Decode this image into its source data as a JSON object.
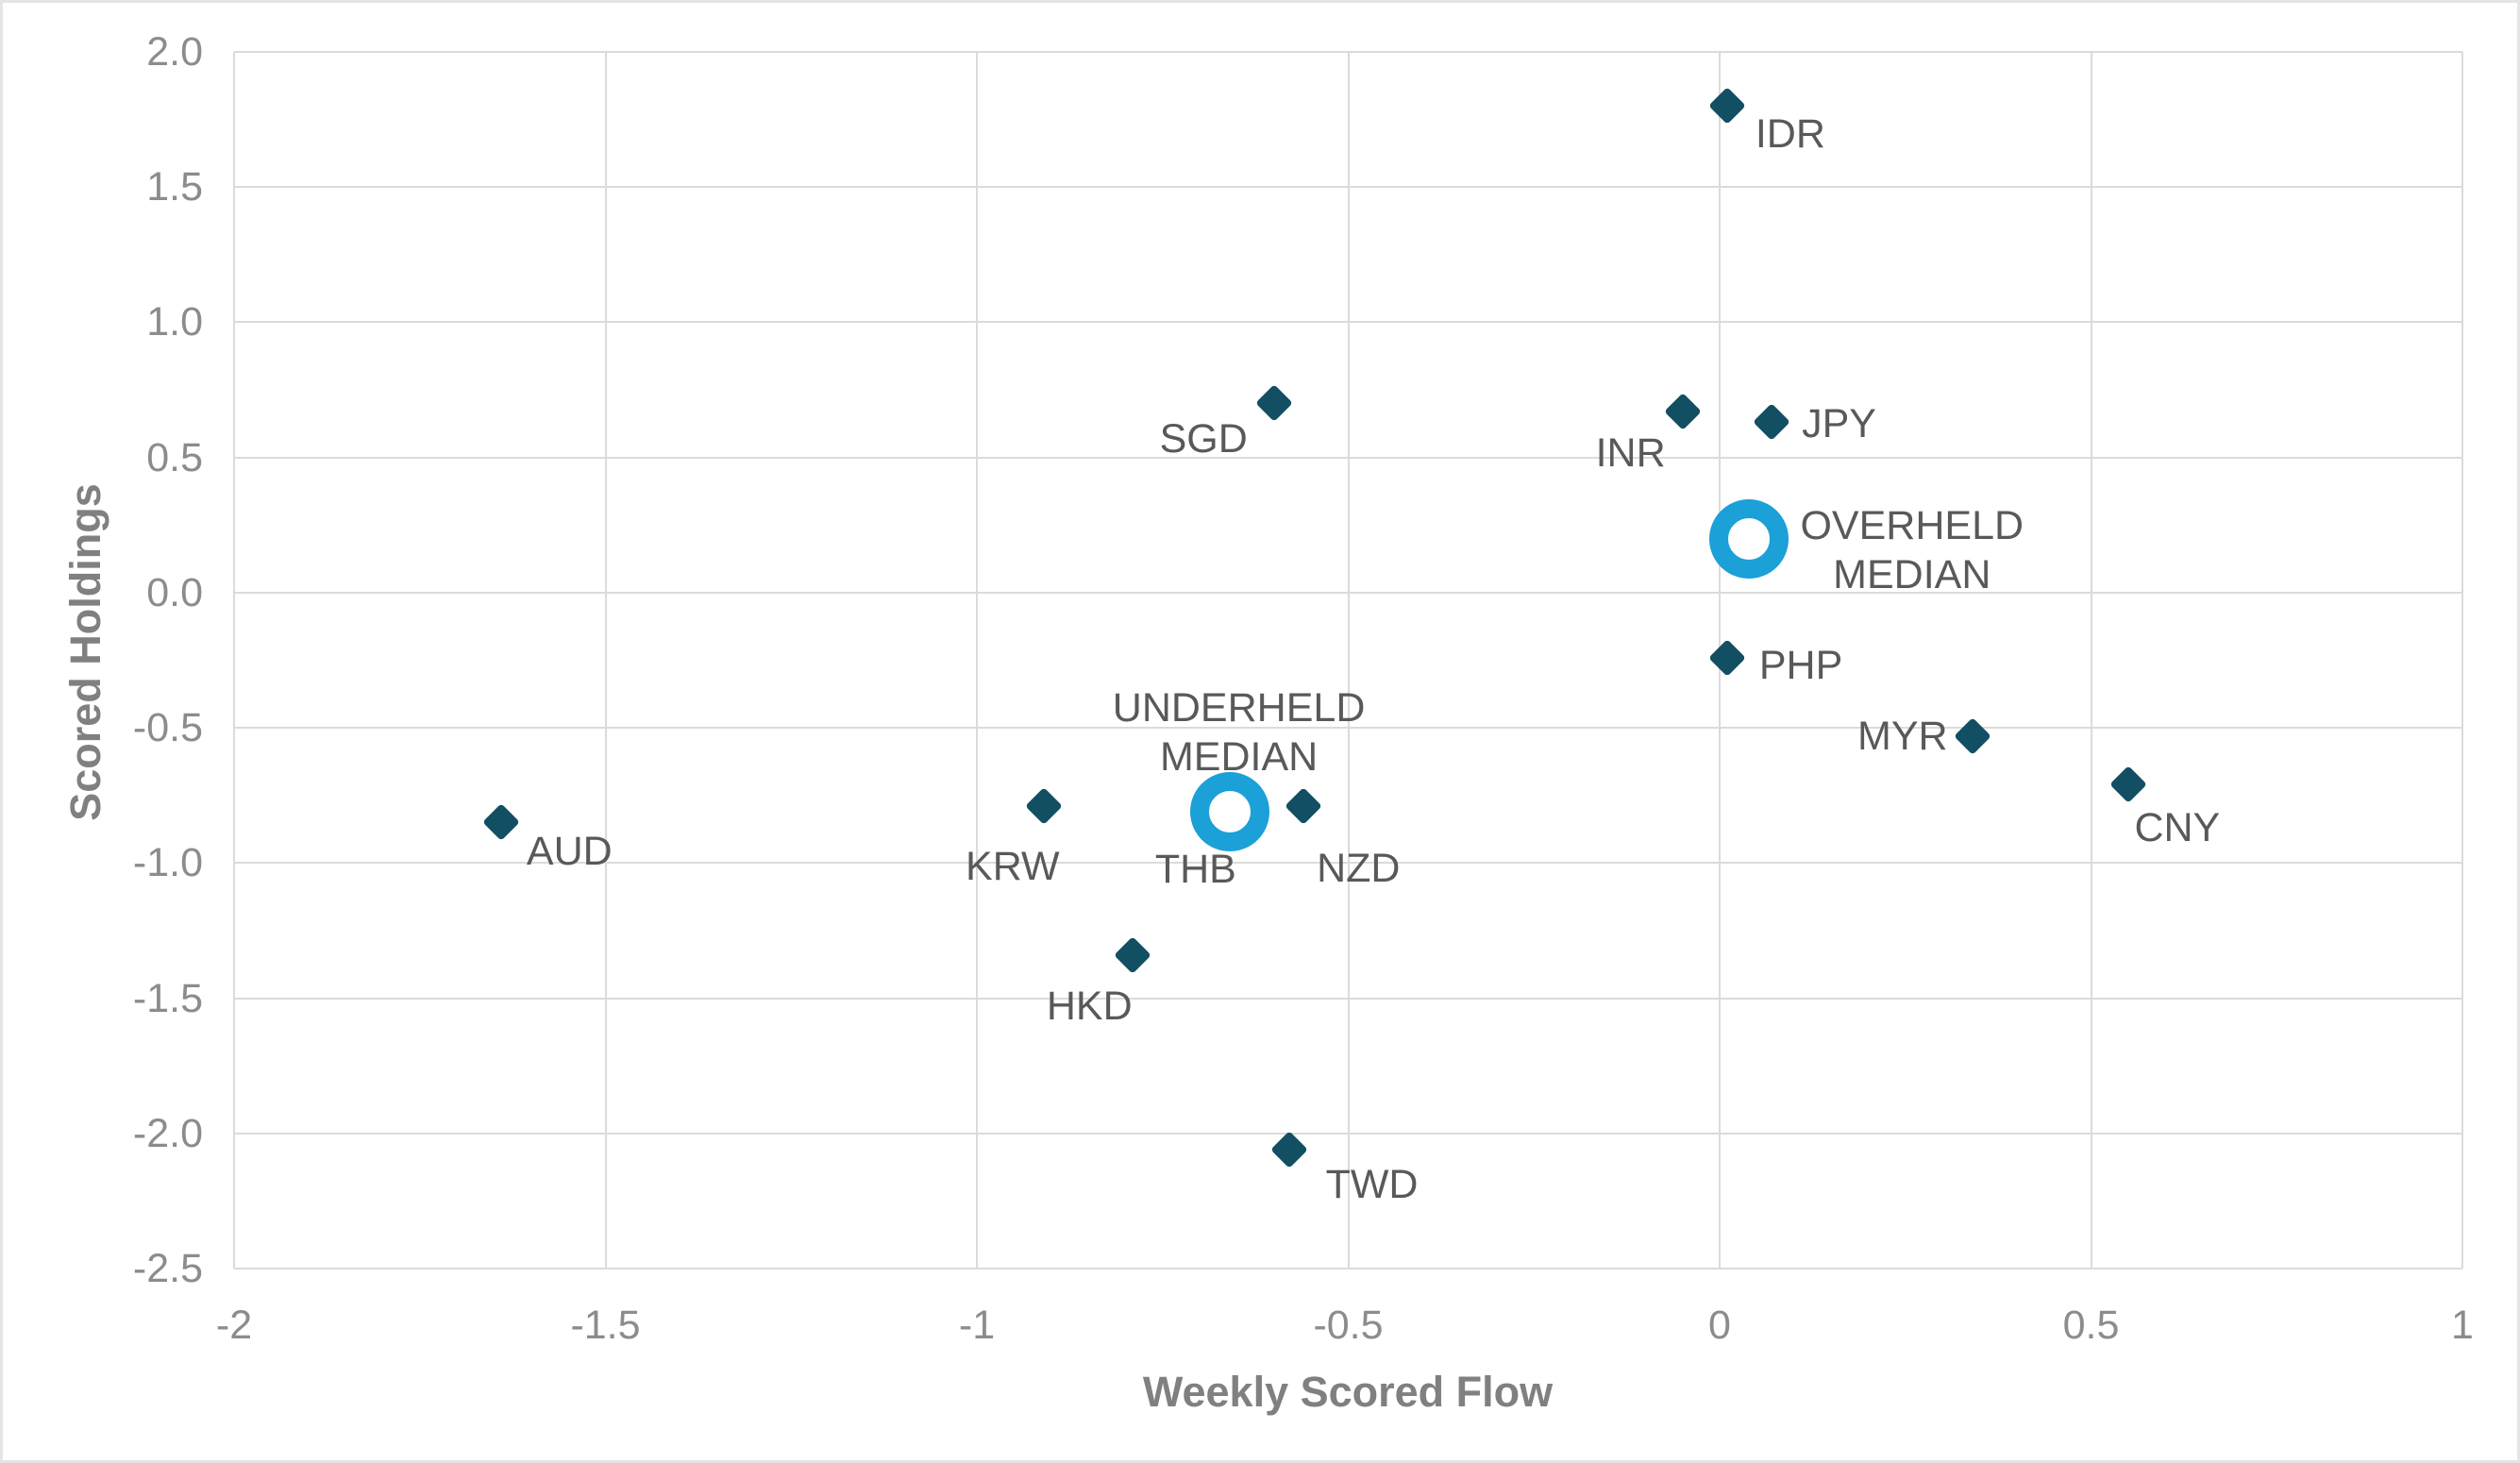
{
  "chart_data": {
    "type": "scatter",
    "title": "",
    "xlabel": "Weekly Scored Flow",
    "ylabel": "Scored Holdings",
    "xlim": [
      -2,
      1
    ],
    "ylim": [
      -2.5,
      2.0
    ],
    "grid": true,
    "legend": "none",
    "xticks": [
      {
        "v": -2,
        "label": "-2"
      },
      {
        "v": -1.5,
        "label": "-1.5"
      },
      {
        "v": -1,
        "label": "-1"
      },
      {
        "v": -0.5,
        "label": "-0.5"
      },
      {
        "v": 0,
        "label": "0"
      },
      {
        "v": 0.5,
        "label": "0.5"
      },
      {
        "v": 1,
        "label": "1"
      }
    ],
    "yticks": [
      {
        "v": 2,
        "label": "2.0"
      },
      {
        "v": 1.5,
        "label": "1.5"
      },
      {
        "v": 1,
        "label": "1.0"
      },
      {
        "v": 0.5,
        "label": "0.5"
      },
      {
        "v": 0,
        "label": "0.0"
      },
      {
        "v": -0.5,
        "label": "-0.5"
      },
      {
        "v": -1,
        "label": "-1.0"
      },
      {
        "v": -1.5,
        "label": "-1.5"
      },
      {
        "v": -2,
        "label": "-2.0"
      },
      {
        "v": -2.5,
        "label": "-2.5"
      }
    ],
    "colors": {
      "diamond": "#134F63",
      "ring": "#1BA0D8",
      "grid": "#DBDBDB",
      "tick_text": "#8C8C8C",
      "axis_title_text": "#808080",
      "label_text": "#595959"
    },
    "series": [
      {
        "name": "currencies",
        "marker": "diamond",
        "color": "#134F63",
        "points": [
          {
            "label": "IDR",
            "x": 0.01,
            "y": 1.8,
            "align": "left",
            "dx": 30,
            "dy": 30
          },
          {
            "label": "SGD",
            "x": -0.6,
            "y": 0.7,
            "align": "right",
            "dx": -28,
            "dy": 38
          },
          {
            "label": "INR",
            "x": -0.05,
            "y": 0.67,
            "align": "right",
            "dx": -18,
            "dy": 44
          },
          {
            "label": "JPY",
            "x": 0.07,
            "y": 0.63,
            "align": "left",
            "dx": 32,
            "dy": 2
          },
          {
            "label": "PHP",
            "x": 0.01,
            "y": -0.24,
            "align": "left",
            "dx": 34,
            "dy": 8
          },
          {
            "label": "MYR",
            "x": 0.34,
            "y": -0.53,
            "align": "right",
            "dx": -26,
            "dy": 0
          },
          {
            "label": "CNY",
            "x": 0.55,
            "y": -0.71,
            "align": "center",
            "dx": 52,
            "dy": 46
          },
          {
            "label": "AUD",
            "x": -1.64,
            "y": -0.85,
            "align": "center",
            "dx": 72,
            "dy": 31
          },
          {
            "label": "KRW",
            "x": -0.91,
            "y": -0.79,
            "align": "center",
            "dx": -33,
            "dy": 64
          },
          {
            "label": "THB",
            "x": -0.68,
            "y": -0.8,
            "align": "center",
            "dx": -20,
            "dy": 64
          },
          {
            "label": "NZD",
            "x": -0.56,
            "y": -0.79,
            "align": "center",
            "dx": 58,
            "dy": 66
          },
          {
            "label": "HKD",
            "x": -0.79,
            "y": -1.34,
            "align": "center",
            "dx": -46,
            "dy": 54
          },
          {
            "label": "TWD",
            "x": -0.58,
            "y": -2.06,
            "align": "center",
            "dx": 88,
            "dy": 37
          }
        ]
      },
      {
        "name": "medians",
        "marker": "ring",
        "color": "#1BA0D8",
        "points": [
          {
            "label": "OVERHELD MEDIAN",
            "lines": [
              "OVERHELD",
              "MEDIAN"
            ],
            "x": 0.04,
            "y": 0.2,
            "align": "left",
            "dx": 54,
            "dy": 12
          },
          {
            "label": "UNDERHELD MEDIAN",
            "lines": [
              "UNDERHELD",
              "MEDIAN"
            ],
            "x": -0.66,
            "y": -0.81,
            "align": "center",
            "dx": 10,
            "dy": -84
          }
        ]
      }
    ]
  }
}
